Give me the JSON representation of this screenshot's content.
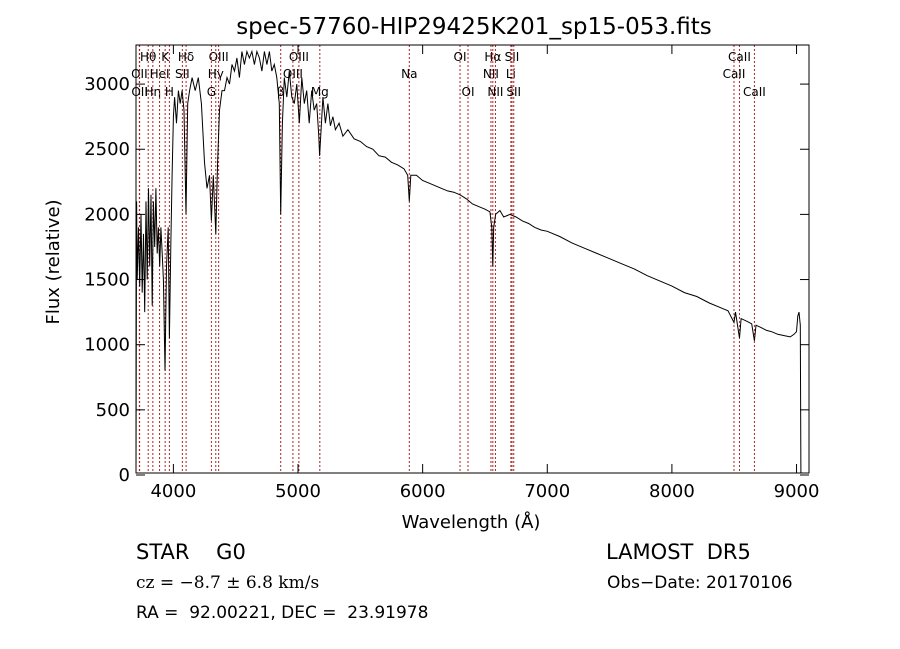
{
  "chart_data": {
    "type": "line",
    "title": "spec-57760-HIP29425K201_sp15-053.fits",
    "xlabel": "Wavelength (Å)",
    "ylabel": "Flux (relative)",
    "xlim": [
      3700,
      9100
    ],
    "ylim": [
      0,
      3300
    ],
    "xticks": [
      4000,
      5000,
      6000,
      7000,
      8000,
      9000
    ],
    "yticks": [
      0,
      500,
      1000,
      1500,
      2000,
      2500,
      3000
    ],
    "grid": false,
    "line_color": "#000000",
    "marker_color": "#b22222",
    "series": [
      {
        "name": "",
        "points": [
          [
            3700,
            20
          ],
          [
            3705,
            2100
          ],
          [
            3710,
            1500
          ],
          [
            3720,
            1900
          ],
          [
            3730,
            1450
          ],
          [
            3740,
            2000
          ],
          [
            3750,
            1400
          ],
          [
            3760,
            1850
          ],
          [
            3770,
            1250
          ],
          [
            3780,
            2100
          ],
          [
            3790,
            1500
          ],
          [
            3800,
            2200
          ],
          [
            3810,
            1600
          ],
          [
            3820,
            2150
          ],
          [
            3830,
            1300
          ],
          [
            3840,
            2100
          ],
          [
            3850,
            1750
          ],
          [
            3860,
            2200
          ],
          [
            3870,
            1700
          ],
          [
            3880,
            1900
          ],
          [
            3890,
            1600
          ],
          [
            3900,
            1900
          ],
          [
            3910,
            1700
          ],
          [
            3920,
            1500
          ],
          [
            3933,
            800
          ],
          [
            3945,
            1600
          ],
          [
            3958,
            1900
          ],
          [
            3968,
            1050
          ],
          [
            3980,
            1800
          ],
          [
            3990,
            2300
          ],
          [
            4000,
            2750
          ],
          [
            4010,
            2900
          ],
          [
            4025,
            2700
          ],
          [
            4040,
            2950
          ],
          [
            4055,
            2850
          ],
          [
            4070,
            2950
          ],
          [
            4085,
            2800
          ],
          [
            4101,
            2000
          ],
          [
            4115,
            2850
          ],
          [
            4130,
            2950
          ],
          [
            4150,
            3050
          ],
          [
            4175,
            2950
          ],
          [
            4200,
            3050
          ],
          [
            4225,
            2850
          ],
          [
            4250,
            2400
          ],
          [
            4270,
            2200
          ],
          [
            4290,
            2300
          ],
          [
            4305,
            1950
          ],
          [
            4320,
            2300
          ],
          [
            4340,
            1850
          ],
          [
            4355,
            2400
          ],
          [
            4370,
            2800
          ],
          [
            4390,
            2950
          ],
          [
            4410,
            2950
          ],
          [
            4430,
            3050
          ],
          [
            4450,
            3000
          ],
          [
            4470,
            3150
          ],
          [
            4490,
            3100
          ],
          [
            4510,
            3200
          ],
          [
            4530,
            3050
          ],
          [
            4550,
            3250
          ],
          [
            4570,
            3150
          ],
          [
            4590,
            3250
          ],
          [
            4610,
            3200
          ],
          [
            4630,
            3250
          ],
          [
            4650,
            3150
          ],
          [
            4670,
            3250
          ],
          [
            4690,
            3200
          ],
          [
            4710,
            3100
          ],
          [
            4730,
            3250
          ],
          [
            4750,
            3150
          ],
          [
            4770,
            3250
          ],
          [
            4790,
            3100
          ],
          [
            4810,
            3150
          ],
          [
            4830,
            3050
          ],
          [
            4850,
            2850
          ],
          [
            4861,
            2000
          ],
          [
            4875,
            2700
          ],
          [
            4890,
            3050
          ],
          [
            4910,
            2900
          ],
          [
            4930,
            3100
          ],
          [
            4950,
            2900
          ],
          [
            4970,
            2850
          ],
          [
            4990,
            3000
          ],
          [
            5010,
            2700
          ],
          [
            5030,
            3050
          ],
          [
            5050,
            2850
          ],
          [
            5070,
            2950
          ],
          [
            5090,
            2700
          ],
          [
            5110,
            2950
          ],
          [
            5130,
            2800
          ],
          [
            5150,
            2850
          ],
          [
            5167,
            2600
          ],
          [
            5173,
            2450
          ],
          [
            5185,
            2650
          ],
          [
            5200,
            2900
          ],
          [
            5220,
            2700
          ],
          [
            5240,
            2850
          ],
          [
            5260,
            2680
          ],
          [
            5280,
            2750
          ],
          [
            5300,
            2650
          ],
          [
            5330,
            2700
          ],
          [
            5360,
            2600
          ],
          [
            5400,
            2650
          ],
          [
            5450,
            2580
          ],
          [
            5500,
            2560
          ],
          [
            5550,
            2520
          ],
          [
            5600,
            2500
          ],
          [
            5650,
            2450
          ],
          [
            5700,
            2440
          ],
          [
            5750,
            2400
          ],
          [
            5800,
            2380
          ],
          [
            5850,
            2350
          ],
          [
            5880,
            2300
          ],
          [
            5893,
            2100
          ],
          [
            5905,
            2300
          ],
          [
            5950,
            2300
          ],
          [
            6000,
            2260
          ],
          [
            6050,
            2240
          ],
          [
            6100,
            2220
          ],
          [
            6150,
            2200
          ],
          [
            6200,
            2180
          ],
          [
            6250,
            2170
          ],
          [
            6300,
            2150
          ],
          [
            6350,
            2120
          ],
          [
            6400,
            2080
          ],
          [
            6450,
            2060
          ],
          [
            6500,
            2040
          ],
          [
            6540,
            2020
          ],
          [
            6555,
            1900
          ],
          [
            6563,
            1600
          ],
          [
            6570,
            1900
          ],
          [
            6585,
            2000
          ],
          [
            6620,
            2030
          ],
          [
            6650,
            1980
          ],
          [
            6700,
            2000
          ],
          [
            6750,
            1980
          ],
          [
            6800,
            1950
          ],
          [
            6850,
            1930
          ],
          [
            6900,
            1900
          ],
          [
            6950,
            1880
          ],
          [
            7000,
            1870
          ],
          [
            7100,
            1830
          ],
          [
            7200,
            1780
          ],
          [
            7300,
            1740
          ],
          [
            7400,
            1700
          ],
          [
            7500,
            1660
          ],
          [
            7600,
            1620
          ],
          [
            7700,
            1580
          ],
          [
            7800,
            1530
          ],
          [
            7900,
            1490
          ],
          [
            8000,
            1450
          ],
          [
            8100,
            1400
          ],
          [
            8200,
            1370
          ],
          [
            8300,
            1320
          ],
          [
            8400,
            1280
          ],
          [
            8450,
            1260
          ],
          [
            8498,
            1170
          ],
          [
            8510,
            1250
          ],
          [
            8542,
            1050
          ],
          [
            8555,
            1200
          ],
          [
            8600,
            1180
          ],
          [
            8640,
            1160
          ],
          [
            8662,
            1030
          ],
          [
            8675,
            1150
          ],
          [
            8720,
            1130
          ],
          [
            8760,
            1110
          ],
          [
            8800,
            1100
          ],
          [
            8850,
            1080
          ],
          [
            8900,
            1070
          ],
          [
            8950,
            1060
          ],
          [
            8980,
            1080
          ],
          [
            9000,
            1100
          ],
          [
            9010,
            1220
          ],
          [
            9020,
            1250
          ],
          [
            9030,
            1150
          ],
          [
            9035,
            20
          ],
          [
            9040,
            20
          ]
        ]
      }
    ],
    "line_markers": [
      {
        "label": "Hθ",
        "wavelength": 3798,
        "row": 1
      },
      {
        "label": "OII",
        "wavelength": 3727,
        "row": 2
      },
      {
        "label": "OII",
        "wavelength": 3729,
        "row": 3
      },
      {
        "label": "Hη",
        "wavelength": 3835,
        "row": 3
      },
      {
        "label": "HeI",
        "wavelength": 3889,
        "row": 2
      },
      {
        "label": "K",
        "wavelength": 3934,
        "row": 1
      },
      {
        "label": "SII",
        "wavelength": 4072,
        "row": 2
      },
      {
        "label": "H",
        "wavelength": 3968,
        "row": 3
      },
      {
        "label": "Hδ",
        "wavelength": 4102,
        "row": 1
      },
      {
        "label": "OIII",
        "wavelength": 4363,
        "row": 1
      },
      {
        "label": "Hγ",
        "wavelength": 4340,
        "row": 2
      },
      {
        "label": "G",
        "wavelength": 4305,
        "row": 3
      },
      {
        "label": "OIII",
        "wavelength": 5007,
        "row": 1
      },
      {
        "label": "OIII",
        "wavelength": 4959,
        "row": 2
      },
      {
        "label": "β",
        "wavelength": 4861,
        "row": 3
      },
      {
        "label": "Mg",
        "wavelength": 5175,
        "row": 3
      },
      {
        "label": "Na",
        "wavelength": 5893,
        "row": 2
      },
      {
        "label": "OI",
        "wavelength": 6300,
        "row": 1
      },
      {
        "label": "OI",
        "wavelength": 6364,
        "row": 3
      },
      {
        "label": "Hα",
        "wavelength": 6563,
        "row": 1
      },
      {
        "label": "NII",
        "wavelength": 6548,
        "row": 2
      },
      {
        "label": "NII",
        "wavelength": 6584,
        "row": 3
      },
      {
        "label": "SII",
        "wavelength": 6717,
        "row": 1
      },
      {
        "label": "Li",
        "wavelength": 6708,
        "row": 2
      },
      {
        "label": "SII",
        "wavelength": 6731,
        "row": 3
      },
      {
        "label": "CaII",
        "wavelength": 8542,
        "row": 1
      },
      {
        "label": "CaII",
        "wavelength": 8498,
        "row": 2
      },
      {
        "label": "CaII",
        "wavelength": 8662,
        "row": 3
      }
    ]
  },
  "info": {
    "object_line": "STAR    G0",
    "survey": "LAMOST  DR5",
    "cz": "cz = −8.7 ± 6.8 km/s",
    "obs_date": "Obs−Date: 20170106",
    "radec": "RA =  92.00221, DEC =  23.91978"
  }
}
